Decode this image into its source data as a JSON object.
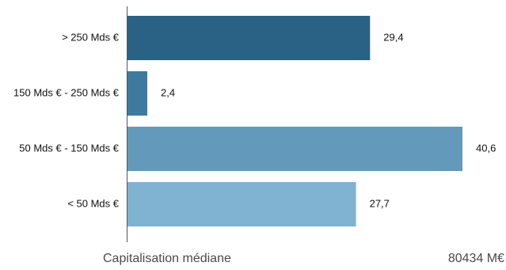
{
  "chart_data": {
    "type": "bar",
    "orientation": "horizontal",
    "categories": [
      "> 250 Mds €",
      "150 Mds € - 250 Mds €",
      "50 Mds € - 150 Mds €",
      "< 50 Mds €"
    ],
    "values": [
      29.4,
      2.4,
      40.6,
      27.7
    ],
    "value_labels": [
      "29,4",
      "2,4",
      "40,6",
      "27,7"
    ],
    "colors": [
      "#2a6286",
      "#3e7aa0",
      "#6399ba",
      "#80b2d2"
    ],
    "xlim": [
      0,
      40.6
    ],
    "grid": false,
    "legend": "none"
  },
  "footer": {
    "left_label": "Capitalisation médiane",
    "right_value": "80434 M€"
  }
}
